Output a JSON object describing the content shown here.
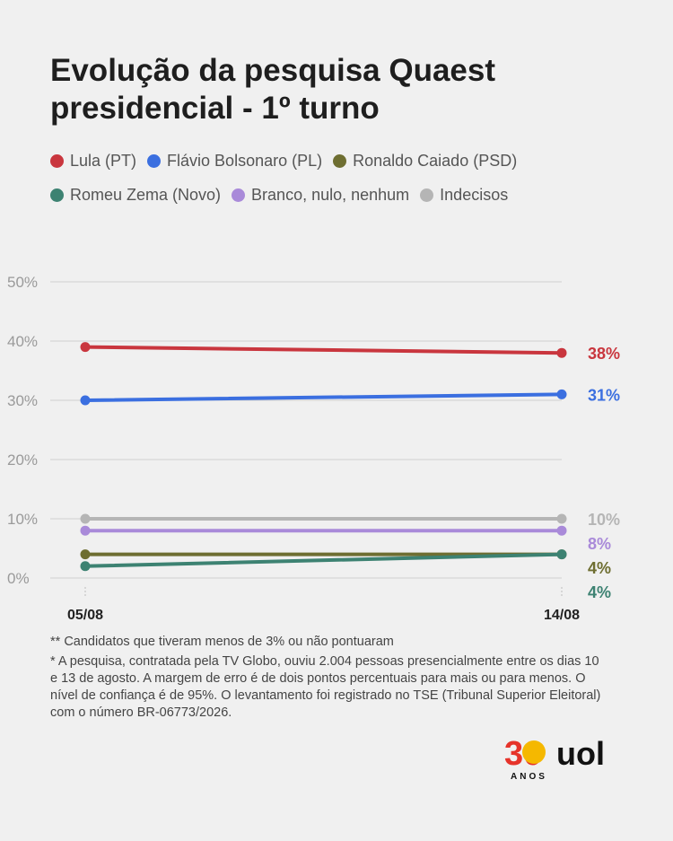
{
  "title": "Evolução da pesquisa Quaest presidencial - 1º turno",
  "notes": {
    "note1": "** Candidatos que tiveram menos de 3% ou não pontuaram",
    "note2": "* A pesquisa, contratada pela TV Globo, ouviu 2.004 pessoas presencialmente entre os dias 10 e 13 de agosto. A margem de erro é de dois pontos percentuais para mais ou para menos. O nível de confiança é de 95%. O levantamento foi registrado no TSE (Tribunal Superior Eleitoral) com o número BR-06773/2026."
  },
  "logo": {
    "anniversary": "30",
    "anos": "ANOS",
    "brand": "uol"
  },
  "chart_data": {
    "type": "line",
    "x": [
      "05/08",
      "14/08"
    ],
    "ylim": [
      0,
      50
    ],
    "yticks": [
      0,
      10,
      20,
      30,
      40,
      50
    ],
    "ytick_labels": [
      "0%",
      "10%",
      "20%",
      "30%",
      "40%",
      "50%"
    ],
    "grid": true,
    "legend_position": "top",
    "series": [
      {
        "name": "Lula (PT)",
        "color": "#c9363e",
        "values": [
          39,
          38
        ],
        "end_label": "38%"
      },
      {
        "name": "Flávio Bolsonaro (PL)",
        "color": "#3b6fe0",
        "values": [
          30,
          31
        ],
        "end_label": "31%"
      },
      {
        "name": "Ronaldo Caiado (PSD)",
        "color": "#6e6e31",
        "values": [
          4,
          4
        ],
        "end_label": "4%"
      },
      {
        "name": "Romeu Zema (Novo)",
        "color": "#3d8272",
        "values": [
          2,
          4
        ],
        "end_label": "4%"
      },
      {
        "name": "Branco, nulo, nenhum",
        "color": "#a98ad9",
        "values": [
          8,
          8
        ],
        "end_label": "8%"
      },
      {
        "name": "Indecisos",
        "color": "#b5b5b5",
        "values": [
          10,
          10
        ],
        "end_label": "10%"
      }
    ]
  }
}
